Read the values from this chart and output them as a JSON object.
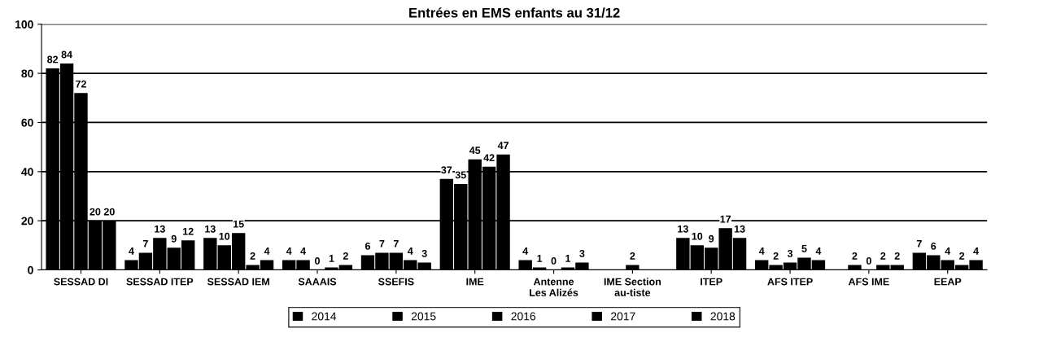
{
  "chart_data": {
    "type": "bar",
    "title": "Entrées en EMS enfants au 31/12",
    "categories": [
      "SESSAD DI",
      "SESSAD ITEP",
      "SESSAD IEM",
      "SAAAIS",
      "SSEFIS",
      "IME",
      "Antenne Les Alizés",
      "IME Section au-tiste",
      "ITEP",
      "AFS ITEP",
      "AFS IME",
      "EEAP"
    ],
    "series": [
      {
        "name": "2014",
        "color": "#000000",
        "values": [
          82,
          4,
          13,
          4,
          6,
          37,
          4,
          null,
          13,
          4,
          null,
          7
        ]
      },
      {
        "name": "2015",
        "color": "#000000",
        "values": [
          84,
          7,
          10,
          4,
          7,
          35,
          1,
          null,
          10,
          2,
          2,
          6
        ]
      },
      {
        "name": "2016",
        "color": "#000000",
        "values": [
          72,
          13,
          15,
          0,
          7,
          45,
          0,
          2,
          9,
          3,
          0,
          4
        ]
      },
      {
        "name": "2017",
        "color": "#000000",
        "values": [
          20,
          9,
          2,
          1,
          4,
          42,
          1,
          null,
          17,
          5,
          2,
          2
        ]
      },
      {
        "name": "2018",
        "color": "#000000",
        "values": [
          20,
          12,
          4,
          2,
          3,
          47,
          3,
          null,
          13,
          4,
          2,
          4
        ]
      }
    ],
    "ylim": [
      0,
      100
    ],
    "yticks": [
      0,
      20,
      40,
      60,
      80,
      100
    ],
    "grid": "y",
    "legend": "bottom",
    "data_labels": true
  }
}
